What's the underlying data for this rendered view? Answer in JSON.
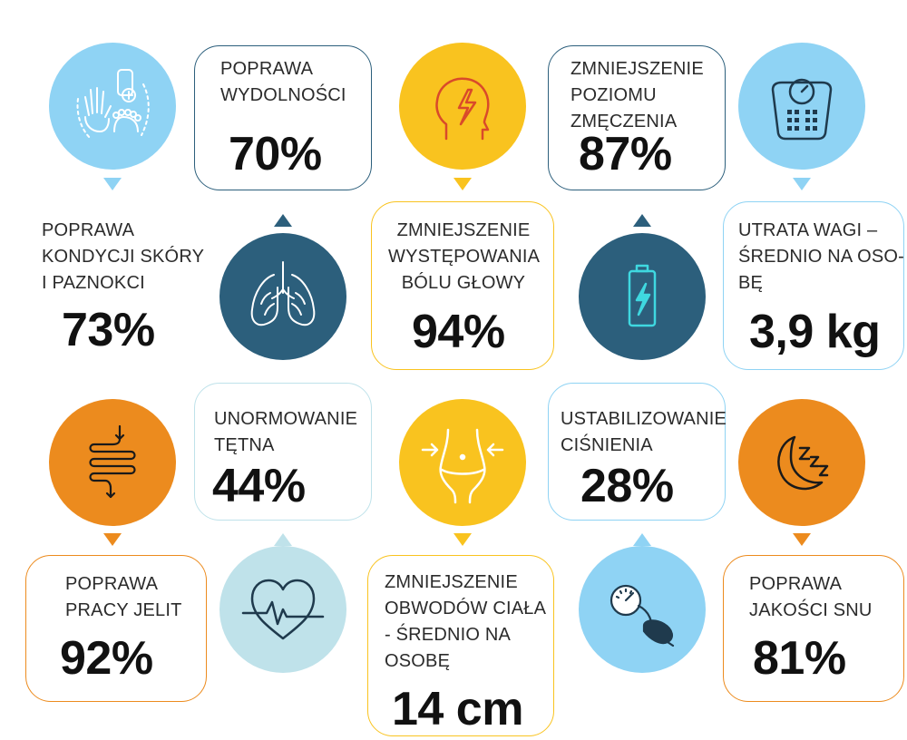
{
  "colors": {
    "light_blue": "#8fd3f4",
    "navy": "#2c5f7c",
    "yellow": "#f9c31f",
    "orange": "#ec8b1e",
    "pale_teal": "#bfe2ea"
  },
  "stats": {
    "skin": {
      "label": [
        "POPRAWA",
        "KONDYCJI SKÓRY",
        "I PAZNOKCI"
      ],
      "value": "73%",
      "icon": "hand-foot-icon"
    },
    "fitness": {
      "label": [
        "POPRAWA",
        "WYDOLNOŚCI"
      ],
      "value": "70%",
      "icon": "lungs-icon"
    },
    "headache": {
      "label": [
        "ZMNIEJSZENIE",
        "WYSTĘPOWANIA",
        "BÓLU GŁOWY"
      ],
      "value": "94%",
      "icon": "head-lightning-icon"
    },
    "fatigue": {
      "label": [
        "ZMNIEJSZENIE",
        "POZIOMU",
        "ZMĘCZENIA"
      ],
      "value": "87%",
      "icon": "battery-icon"
    },
    "weight": {
      "label": [
        "UTRATA WAGI –",
        "ŚREDNIO NA OSO-",
        "BĘ"
      ],
      "value": "3,9 kg",
      "icon": "scale-icon"
    },
    "bowel": {
      "label": [
        "POPRAWA",
        "PRACY JELIT"
      ],
      "value": "92%",
      "icon": "intestines-icon"
    },
    "heart": {
      "label": [
        "UNORMOWANIE",
        "TĘTNA"
      ],
      "value": "44%",
      "icon": "heart-pulse-icon"
    },
    "body": {
      "label": [
        "ZMNIEJSZENIE",
        "OBWODÓW CIAŁA",
        "- ŚREDNIO NA",
        "OSOBĘ"
      ],
      "value": "14 cm",
      "icon": "waist-icon"
    },
    "pressure": {
      "label": [
        "USTABILIZOWANIE",
        "CIŚNIENIA"
      ],
      "value": "28%",
      "icon": "blood-pressure-icon"
    },
    "sleep": {
      "label": [
        "POPRAWA",
        "JAKOŚCI SNU"
      ],
      "value": "81%",
      "icon": "moon-sleep-icon"
    }
  }
}
